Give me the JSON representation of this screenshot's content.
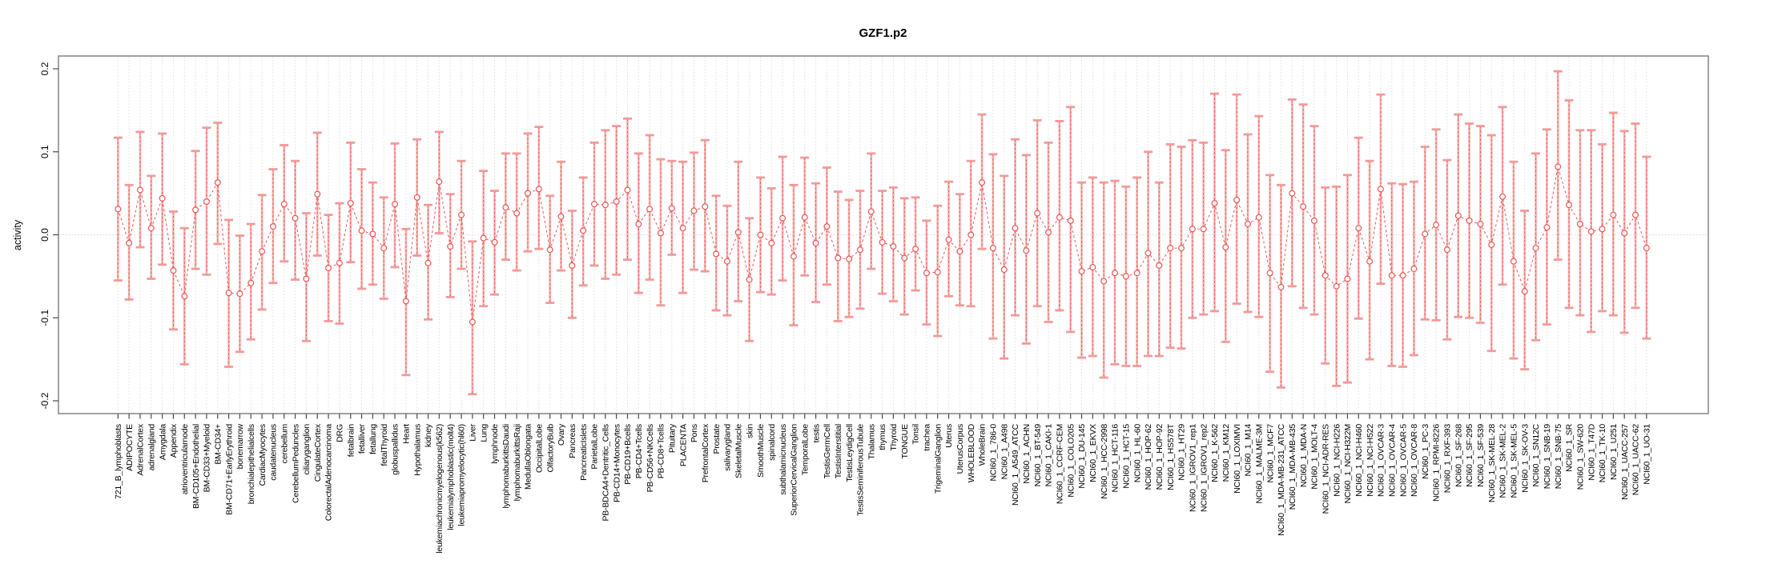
{
  "title": "GZF1.p2",
  "colors": {
    "marker": "#ee5352",
    "dash_line": "#ee5352",
    "whisker_fill": "#f5a6a3",
    "cap": "#f29a98",
    "grid": "#dedede",
    "zero_line": "#d4d4d4",
    "box_border": "#8c8c8c",
    "tick": "#4a4a4a",
    "text": "#000000"
  },
  "chart_data": {
    "type": "line",
    "subtype": "points-with-error-bars",
    "title": "GZF1.p2",
    "xlabel": "",
    "ylabel": "activity",
    "ylim": [
      -0.216,
      0.216
    ],
    "yticks": [
      -0.2,
      -0.1,
      0.0,
      0.1,
      0.2
    ],
    "y_tick_labels": [
      "-0.2",
      "-0.1",
      "0.0",
      "0.1",
      "0.2"
    ],
    "legend_position": "none",
    "grid": {
      "vertical_dotted_per_category": true,
      "dotted_zero_line": true
    },
    "categories": [
      "721_B_lymphoblasts",
      "ADIPOCYTE",
      "AdrenalCortex",
      "adrenalgland",
      "Amygdala",
      "Appendix",
      "atrioventricularnode",
      "BM-CD105+Endothelial",
      "BM-CD33+Myeloid",
      "BM-CD34+",
      "BM-CD71+EarlyErythroid",
      "bonemarrow",
      "bronchialepithelialcells",
      "CardiacMyocytes",
      "caudatenucleus",
      "cerebellum",
      "CerebellumPeduncles",
      "ciliaryganglion",
      "CingulateCortex",
      "ColorectalAdenocarcinoma",
      "DRG",
      "fetalbrain",
      "fetalliver",
      "fetallung",
      "fetalThyroid",
      "globuspallidus",
      "Heart",
      "Hypothalamus",
      "kidney",
      "leukemiachronicmyelogenous(k562)",
      "leukemialymphoblastic(molt4)",
      "leukemiapromyelocytic(hl60)",
      "Liver",
      "Lung",
      "lymphnode",
      "lymphomaburkittsDaudi",
      "lymphomaburkittsRaji",
      "MedullaOblongata",
      "OccipitalLobe",
      "OlfactoryBulb",
      "Ovary",
      "Pancreas",
      "PancreaticIslets",
      "ParietalLobe",
      "PB-BDCA4+Dentritic_Cells",
      "PB-CD14+Monocytes",
      "PB-CD19+Bcells",
      "PB-CD4+Tcells",
      "PB-CD56+NKCells",
      "PB-CD8+Tcells",
      "Pituitary",
      "PLACENTA",
      "Pons",
      "PrefrontalCortex",
      "Prostate",
      "salivarygland",
      "SkeletalMuscle",
      "skin",
      "SmoothMuscle",
      "spinalcord",
      "subthalamicnucleus",
      "SuperiorCervicalGanglion",
      "TemporalLobe",
      "testis",
      "TestisGermCell",
      "TestisInterstitial",
      "TestisLeydigCell",
      "TestisSeminiferousTubule",
      "Thalamus",
      "thymus",
      "Thyroid",
      "TONGUE",
      "Tonsil",
      "trachea",
      "TrigeminalGanglion",
      "Uterus",
      "UterusCorpus",
      "WHOLEBLOOD",
      "WholeBrain",
      "NCI60_1_786-0",
      "NCI60_1_A498",
      "NCI60_1_A549_ATCC",
      "NCI60_1_ACHN",
      "NCI60_1_BT-549",
      "NCI60_1_CAKI-1",
      "NCI60_1_CCRF-CEM",
      "NCI60_1_COLO205",
      "NCI60_1_DU-145",
      "NCI60_1_EKVX",
      "NCI60_1_HCC-2998",
      "NCI60_1_HCT-116",
      "NCI60_1_HCT-15",
      "NCI60_1_HL-60",
      "NCI60_1_HOP-62",
      "NCI60_1_HOP-92",
      "NCI60_1_HS578T",
      "NCI60_1_HT29",
      "NCI60_1_IGROV1_rep1",
      "NCI60_1_IGROV1_rep2",
      "NCI60_1_K-562",
      "NCI60_1_KM12",
      "NCI60_1_LOXIMVI",
      "NCI60_1_M14",
      "NCI60_1_MALME-3M",
      "NCI60_1_MCF7",
      "NCI60_1_MDA-MB-231_ATCC",
      "NCI60_1_MDA-MB-435",
      "NCI60_1_MDA-N",
      "NCI60_1_MOLT-4",
      "NCI60_1_NCI-ADR-RES",
      "NCI60_1_NCI-H226",
      "NCI60_1_NCI-H322M",
      "NCI60_1_NCI-H460",
      "NCI60_1_NCI-H522",
      "NCI60_1_OVCAR-3",
      "NCI60_1_OVCAR-4",
      "NCI60_1_OVCAR-5",
      "NCI60_1_OVCAR-8",
      "NCI60_1_PC-3",
      "NCI60_1_RPMI-8226",
      "NCI60_1_RXF-393",
      "NCI60_1_SF-268",
      "NCI60_1_SF-295",
      "NCI60_1_SF-539",
      "NCI60_1_SK-MEL-28",
      "NCI60_1_SK-MEL-2",
      "NCI60_1_SK-MEL-5",
      "NCI60_1_SK-OV-3",
      "NCI60_1_SN12C",
      "NCI60_1_SNB-19",
      "NCI60_1_SNB-75",
      "NCI60_1_SR",
      "NCI60_1_SW-620",
      "NCI60_1_T47D",
      "NCI60_1_TK-10",
      "NCI60_1_U251",
      "NCI60_1_UACC-257",
      "NCI60_1_UACC-62",
      "NCI60_1_UO-31"
    ],
    "values": [
      0.031,
      -0.01,
      0.054,
      0.008,
      0.044,
      -0.043,
      -0.074,
      0.03,
      0.04,
      0.063,
      -0.07,
      -0.071,
      -0.058,
      -0.02,
      0.01,
      0.037,
      0.02,
      -0.053,
      0.049,
      -0.04,
      -0.034,
      0.038,
      0.005,
      0.001,
      -0.016,
      0.037,
      -0.08,
      0.045,
      -0.034,
      0.064,
      -0.014,
      0.024,
      -0.105,
      -0.004,
      -0.009,
      0.033,
      0.026,
      0.05,
      0.055,
      -0.018,
      0.022,
      -0.037,
      0.005,
      0.037,
      0.036,
      0.04,
      0.054,
      0.013,
      0.031,
      0.002,
      0.032,
      0.008,
      0.029,
      0.034,
      -0.023,
      -0.032,
      0.003,
      -0.054,
      0.0,
      -0.01,
      0.02,
      -0.026,
      0.021,
      -0.01,
      0.01,
      -0.028,
      -0.029,
      -0.018,
      0.028,
      -0.009,
      -0.014,
      -0.028,
      -0.017,
      -0.046,
      -0.045,
      -0.006,
      -0.02,
      0.0,
      0.063,
      -0.016,
      -0.042,
      0.008,
      -0.019,
      0.026,
      0.003,
      0.021,
      0.017,
      -0.044,
      -0.039,
      -0.056,
      -0.046,
      -0.05,
      -0.046,
      -0.022,
      -0.037,
      -0.016,
      -0.016,
      0.007,
      0.007,
      0.038,
      -0.015,
      0.042,
      0.013,
      0.021,
      -0.046,
      -0.063,
      0.05,
      0.034,
      0.017,
      -0.049,
      -0.062,
      -0.053,
      0.008,
      -0.032,
      0.055,
      -0.049,
      -0.049,
      -0.041,
      0.001,
      0.012,
      -0.018,
      0.023,
      0.017,
      0.013,
      -0.012,
      0.046,
      -0.032,
      -0.068,
      -0.016,
      0.009,
      0.082,
      0.036,
      0.013,
      0.004,
      0.007,
      0.024,
      0.002,
      0.024,
      -0.016
    ],
    "upper": [
      0.117,
      0.06,
      0.124,
      0.071,
      0.122,
      0.028,
      0.008,
      0.101,
      0.129,
      0.135,
      0.018,
      -0.001,
      0.013,
      0.048,
      0.079,
      0.108,
      0.089,
      0.026,
      0.123,
      0.024,
      0.038,
      0.111,
      0.079,
      0.063,
      0.045,
      0.11,
      0.007,
      0.115,
      0.036,
      0.124,
      0.049,
      0.089,
      -0.008,
      0.077,
      0.053,
      0.098,
      0.098,
      0.122,
      0.13,
      0.047,
      0.088,
      0.029,
      0.069,
      0.111,
      0.126,
      0.131,
      0.14,
      0.098,
      0.12,
      0.091,
      0.089,
      0.088,
      0.099,
      0.114,
      0.047,
      0.035,
      0.088,
      0.02,
      0.069,
      0.056,
      0.094,
      0.06,
      0.093,
      0.062,
      0.081,
      0.052,
      0.042,
      0.053,
      0.098,
      0.053,
      0.057,
      0.044,
      0.045,
      0.017,
      0.035,
      0.064,
      0.049,
      0.089,
      0.145,
      0.097,
      0.071,
      0.115,
      0.096,
      0.138,
      0.111,
      0.137,
      0.154,
      0.063,
      0.069,
      0.063,
      0.065,
      0.058,
      0.069,
      0.1,
      0.063,
      0.109,
      0.106,
      0.114,
      0.111,
      0.17,
      0.102,
      0.169,
      0.121,
      0.143,
      0.072,
      0.06,
      0.163,
      0.157,
      0.131,
      0.057,
      0.058,
      0.072,
      0.117,
      0.089,
      0.169,
      0.062,
      0.061,
      0.064,
      0.106,
      0.127,
      0.09,
      0.145,
      0.134,
      0.131,
      0.12,
      0.154,
      0.088,
      0.029,
      0.098,
      0.127,
      0.197,
      0.162,
      0.126,
      0.126,
      0.109,
      0.147,
      0.125,
      0.134,
      0.094
    ],
    "lower": [
      -0.055,
      -0.078,
      -0.015,
      -0.053,
      -0.036,
      -0.114,
      -0.156,
      -0.041,
      -0.048,
      -0.011,
      -0.159,
      -0.141,
      -0.126,
      -0.09,
      -0.058,
      -0.032,
      -0.054,
      -0.128,
      -0.025,
      -0.104,
      -0.107,
      -0.033,
      -0.065,
      -0.06,
      -0.077,
      -0.039,
      -0.169,
      -0.025,
      -0.102,
      0.002,
      -0.075,
      -0.041,
      -0.192,
      -0.086,
      -0.072,
      -0.03,
      -0.043,
      -0.02,
      -0.017,
      -0.082,
      -0.043,
      -0.1,
      -0.061,
      -0.037,
      -0.053,
      -0.048,
      -0.03,
      -0.07,
      -0.054,
      -0.085,
      -0.024,
      -0.07,
      -0.042,
      -0.044,
      -0.091,
      -0.097,
      -0.08,
      -0.128,
      -0.069,
      -0.072,
      -0.055,
      -0.109,
      -0.049,
      -0.081,
      -0.06,
      -0.104,
      -0.099,
      -0.089,
      -0.041,
      -0.071,
      -0.08,
      -0.096,
      -0.067,
      -0.108,
      -0.122,
      -0.074,
      -0.085,
      -0.086,
      -0.017,
      -0.125,
      -0.149,
      -0.097,
      -0.131,
      -0.086,
      -0.105,
      -0.091,
      -0.117,
      -0.148,
      -0.146,
      -0.172,
      -0.156,
      -0.158,
      -0.158,
      -0.146,
      -0.146,
      -0.136,
      -0.137,
      -0.1,
      -0.096,
      -0.092,
      -0.129,
      -0.083,
      -0.093,
      -0.099,
      -0.165,
      -0.184,
      -0.062,
      -0.088,
      -0.096,
      -0.155,
      -0.182,
      -0.178,
      -0.101,
      -0.15,
      -0.059,
      -0.158,
      -0.159,
      -0.145,
      -0.102,
      -0.103,
      -0.126,
      -0.099,
      -0.1,
      -0.106,
      -0.14,
      -0.06,
      -0.149,
      -0.162,
      -0.127,
      -0.108,
      -0.03,
      -0.088,
      -0.097,
      -0.117,
      -0.092,
      -0.097,
      -0.118,
      -0.088,
      -0.125
    ]
  }
}
